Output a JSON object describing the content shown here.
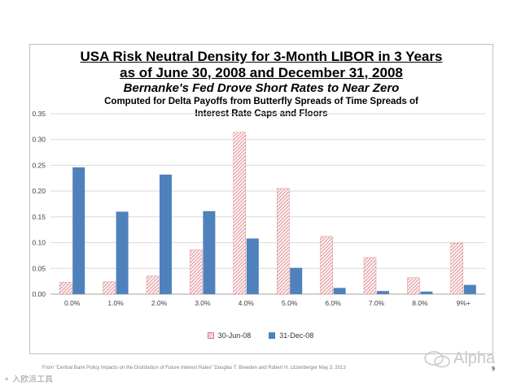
{
  "slide": {
    "title_line1": "USA Risk Neutral Density for 3-Month LIBOR in 3 Years",
    "title_line2": "as of  June 30, 2008 and December 31, 2008",
    "subtitle": "Bernanke's Fed Drove Short Rates to Near Zero",
    "caption_line1": "Computed for Delta Payoffs from Butterfly Spreads of Time Spreads of",
    "caption_line2": "Interest Rate Caps and Floors",
    "source": "From  \"Central Bank Policy Impacts on the Distribution of Future Interest Rates\"  Douglas T. Breeden and Robert H. Litzenberger  May 3, 2013",
    "page_number": "9",
    "watermark_left": "入欧派工具",
    "watermark_right": "Alpha"
  },
  "colors": {
    "series1_fill": "#e7a9ad",
    "series1_stroke": "#d9767e",
    "series2_fill": "#4f81bd",
    "gridline": "#d9d9d9",
    "axis_text": "#404040"
  },
  "chart_data": {
    "type": "bar",
    "title": "USA Risk Neutral Density for 3-Month LIBOR in 3 Years",
    "xlabel": "",
    "ylabel": "",
    "categories": [
      "0.0%",
      "1.0%",
      "2.0%",
      "3.0%",
      "4.0%",
      "5.0%",
      "6.0%",
      "7.0%",
      "8.0%",
      "9%+"
    ],
    "series": [
      {
        "name": "30-Jun-08",
        "values": [
          0.023,
          0.024,
          0.035,
          0.086,
          0.314,
          0.205,
          0.112,
          0.071,
          0.032,
          0.099
        ]
      },
      {
        "name": "31-Dec-08",
        "values": [
          0.246,
          0.16,
          0.232,
          0.161,
          0.108,
          0.051,
          0.012,
          0.006,
          0.005,
          0.018
        ]
      }
    ],
    "ylim": [
      0,
      0.35
    ],
    "yticks": [
      "0.00",
      "0.05",
      "0.10",
      "0.15",
      "0.20",
      "0.25",
      "0.30",
      "0.35"
    ],
    "grid": true,
    "legend_position": "bottom"
  }
}
